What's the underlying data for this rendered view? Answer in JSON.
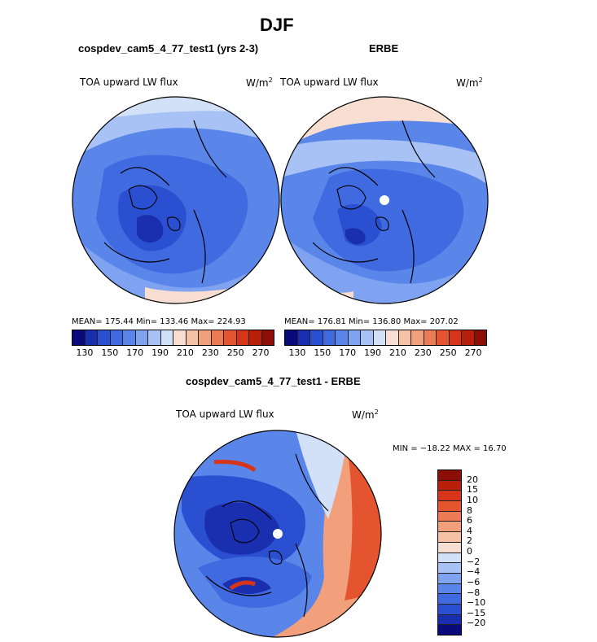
{
  "title": "DJF",
  "panel_left": {
    "subtitle": "cospdev_cam5_4_77_test1 (yrs 2-3)",
    "field": "TOA upward LW flux",
    "units_base": "W/m",
    "units_exp": "2",
    "stats": "MEAN= 175.44   Min= 133.46   Max= 224.93"
  },
  "panel_right": {
    "subtitle": "ERBE",
    "field": "TOA upward LW flux",
    "units_base": "W/m",
    "units_exp": "2",
    "stats": "MEAN= 176.81   Min= 136.80   Max= 207.02"
  },
  "panel_bottom": {
    "subtitle": "cospdev_cam5_4_77_test1 - ERBE",
    "field": "TOA upward LW flux",
    "units_base": "W/m",
    "units_exp": "2",
    "stats": "MIN = −18.22  MAX =   16.70"
  },
  "colorbar_top": {
    "labels": [
      "130",
      "150",
      "170",
      "190",
      "210",
      "230",
      "250",
      "270"
    ],
    "colors": [
      "#0a0a7a",
      "#1a2fb0",
      "#2a4fd0",
      "#3f6ae0",
      "#5a86ea",
      "#7fa3f0",
      "#a8c2f5",
      "#d2e1f8",
      "#f8ded0",
      "#f6c2a6",
      "#f2a07c",
      "#ec7b55",
      "#e4552f",
      "#d6351a",
      "#b8200c",
      "#8c0f05"
    ]
  },
  "colorbar_bottom": {
    "labels": [
      "20",
      "15",
      "10",
      "8",
      "6",
      "4",
      "2",
      "0",
      "−2",
      "−4",
      "−6",
      "−8",
      "−10",
      "−15",
      "−20"
    ],
    "colors": [
      "#8c0f05",
      "#b8200c",
      "#d6351a",
      "#e4552f",
      "#ec7b55",
      "#f2a07c",
      "#f6c2a6",
      "#f8ded0",
      "#d2e1f8",
      "#a8c2f5",
      "#7fa3f0",
      "#5a86ea",
      "#3f6ae0",
      "#2a4fd0",
      "#1a2fb0",
      "#0a0a7a"
    ]
  },
  "map_colors": {
    "deep": "#2a4fd0",
    "mid": "#4a78e6",
    "light": "#7fa3f0",
    "pale": "#d2e1f8",
    "warm": "#f6c2a6",
    "hot": "#e4552f",
    "coast": "#000000"
  }
}
